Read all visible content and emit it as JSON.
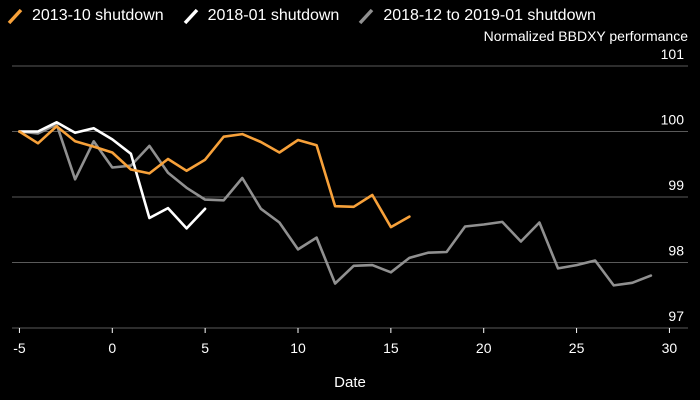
{
  "chart_data": {
    "type": "line",
    "title": "",
    "xlabel": "Date",
    "ylabel": "Normalized BBDXY performance",
    "xlim": [
      -5.4,
      31
    ],
    "ylim": [
      97,
      101
    ],
    "xticks": [
      -5,
      0,
      5,
      10,
      15,
      20,
      25,
      30
    ],
    "yticks": [
      97,
      98,
      99,
      100,
      101
    ],
    "legend_position": "top-left",
    "series": [
      {
        "name": "2013-10 shutdown",
        "color": "#f7a13a",
        "x": [
          -5,
          -4,
          -3,
          -2,
          -1,
          0,
          1,
          2,
          3,
          4,
          5,
          6,
          7,
          8,
          9,
          10,
          11,
          12,
          13,
          14,
          15,
          16
        ],
        "values": [
          100.0,
          99.82,
          100.08,
          99.85,
          99.77,
          99.68,
          99.42,
          99.36,
          99.58,
          99.4,
          99.57,
          99.92,
          99.96,
          99.84,
          99.68,
          99.87,
          99.79,
          98.86,
          98.85,
          99.03,
          98.54,
          98.7
        ]
      },
      {
        "name": "2018-01 shutdown",
        "color": "#ffffff",
        "x": [
          -5,
          -4,
          -3,
          -2,
          -1,
          0,
          1,
          2,
          3,
          4,
          5
        ],
        "values": [
          100.0,
          100.0,
          100.14,
          99.98,
          100.05,
          99.88,
          99.66,
          98.68,
          98.83,
          98.52,
          98.82
        ]
      },
      {
        "name": "2018-12 to 2019-01 shutdown",
        "color": "#909090",
        "x": [
          -5,
          -4,
          -3,
          -2,
          -1,
          0,
          1,
          2,
          3,
          4,
          5,
          6,
          7,
          8,
          9,
          10,
          11,
          12,
          13,
          14,
          15,
          16,
          17,
          18,
          19,
          20,
          21,
          22,
          23,
          24,
          25,
          26,
          27,
          28,
          29
        ],
        "values": [
          100.0,
          99.97,
          100.11,
          99.27,
          99.85,
          99.45,
          99.48,
          99.78,
          99.37,
          99.14,
          98.96,
          98.95,
          99.29,
          98.82,
          98.61,
          98.2,
          98.38,
          97.68,
          97.95,
          97.96,
          97.85,
          98.07,
          98.15,
          98.16,
          98.55,
          98.58,
          98.62,
          98.32,
          98.61,
          97.91,
          97.96,
          98.03,
          97.65,
          97.69,
          97.8
        ]
      }
    ]
  }
}
